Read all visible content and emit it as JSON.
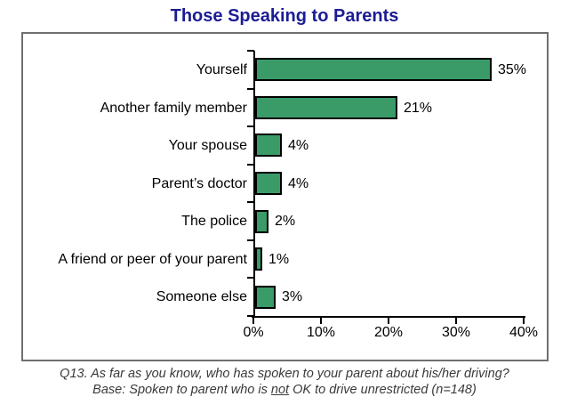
{
  "title": "Those Speaking to Parents",
  "chart_data": {
    "type": "bar",
    "orientation": "horizontal",
    "title": "Those Speaking to Parents",
    "categories": [
      "Yourself",
      "Another family member",
      "Your spouse",
      "Parent’s doctor",
      "The police",
      "A friend or peer of your parent",
      "Someone else"
    ],
    "values": [
      35,
      21,
      4,
      4,
      2,
      1,
      3
    ],
    "value_labels": [
      "35%",
      "21%",
      "4%",
      "4%",
      "2%",
      "1%",
      "3%"
    ],
    "xlim": [
      0,
      40
    ],
    "x_tick_values": [
      0,
      10,
      20,
      30,
      40
    ],
    "x_tick_labels": [
      "0%",
      "10%",
      "20%",
      "30%",
      "40%"
    ],
    "grid": false,
    "legend": "none",
    "bar_color": "#3a9b69",
    "bar_border_color": "#000000"
  },
  "footer": {
    "line1": "Q13. As far as you know, who has spoken to your parent about his/her driving?",
    "line2_prefix": "Base: Spoken to parent who is ",
    "line2_underline": "not",
    "line2_suffix": " OK to drive unrestricted (n=148)"
  },
  "colors": {
    "title_text": "#1c1c94",
    "bar_fill": "#3a9b69",
    "axis": "#000000",
    "box_border": "#6f6f6f",
    "footer_text": "#3a3a3a",
    "background": "#ffffff"
  }
}
